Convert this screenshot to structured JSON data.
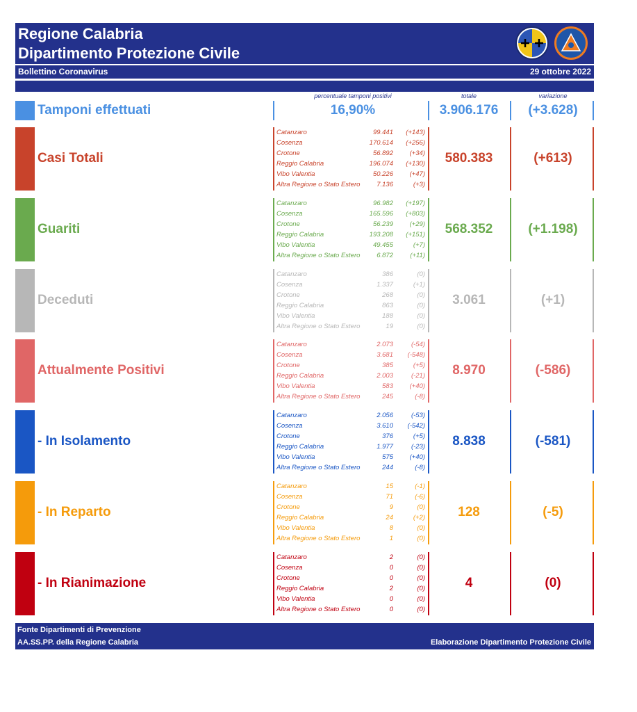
{
  "header": {
    "title_line1": "Regione Calabria",
    "title_line2": "Dipartimento Protezione Civile",
    "subtitle": "Bollettino Coronavirus",
    "date": "29 ottobre 2022"
  },
  "columns": {
    "perc": "percentuale tamponi positivi",
    "totale": "totale",
    "variazione": "variazione"
  },
  "tamponi": {
    "label": "Tamponi effettuati",
    "percentuale": "16,90%",
    "totale": "3.906.176",
    "variazione": "(+3.628)",
    "color": "#4a90e2"
  },
  "sections": [
    {
      "label": "Casi Totali",
      "color": "#c8432b",
      "totale": "580.383",
      "variazione": "(+613)",
      "rows": [
        {
          "name": "Catanzaro",
          "value": "99.441",
          "delta": "(+143)"
        },
        {
          "name": "Cosenza",
          "value": "170.614",
          "delta": "(+256)"
        },
        {
          "name": "Crotone",
          "value": "56.892",
          "delta": "(+34)"
        },
        {
          "name": "Reggio Calabria",
          "value": "196.074",
          "delta": "(+130)"
        },
        {
          "name": "Vibo Valentia",
          "value": "50.226",
          "delta": "(+47)"
        },
        {
          "name": "Altra Regione o Stato Estero",
          "value": "7.136",
          "delta": "(+3)"
        }
      ]
    },
    {
      "label": "Guariti",
      "color": "#6aaa4e",
      "totale": "568.352",
      "variazione": "(+1.198)",
      "rows": [
        {
          "name": "Catanzaro",
          "value": "96.982",
          "delta": "(+197)"
        },
        {
          "name": "Cosenza",
          "value": "165.596",
          "delta": "(+803)"
        },
        {
          "name": "Crotone",
          "value": "56.239",
          "delta": "(+29)"
        },
        {
          "name": "Reggio Calabria",
          "value": "193.208",
          "delta": "(+151)"
        },
        {
          "name": "Vibo Valentia",
          "value": "49.455",
          "delta": "(+7)"
        },
        {
          "name": "Altra Regione o Stato Estero",
          "value": "6.872",
          "delta": "(+11)"
        }
      ]
    },
    {
      "label": "Deceduti",
      "color": "#b7b7b7",
      "totale": "3.061",
      "variazione": "(+1)",
      "rows": [
        {
          "name": "Catanzaro",
          "value": "386",
          "delta": "(0)"
        },
        {
          "name": "Cosenza",
          "value": "1.337",
          "delta": "(+1)"
        },
        {
          "name": "Crotone",
          "value": "268",
          "delta": "(0)"
        },
        {
          "name": "Reggio Calabria",
          "value": "863",
          "delta": "(0)"
        },
        {
          "name": "Vibo Valentia",
          "value": "188",
          "delta": "(0)"
        },
        {
          "name": "Altra Regione o Stato Estero",
          "value": "19",
          "delta": "(0)"
        }
      ]
    },
    {
      "label": "Attualmente Positivi",
      "color": "#e06666",
      "totale": "8.970",
      "variazione": "(-586)",
      "rows": [
        {
          "name": "Catanzaro",
          "value": "2.073",
          "delta": "(-54)"
        },
        {
          "name": "Cosenza",
          "value": "3.681",
          "delta": "(-548)"
        },
        {
          "name": "Crotone",
          "value": "385",
          "delta": "(+5)"
        },
        {
          "name": "Reggio Calabria",
          "value": "2.003",
          "delta": "(-21)"
        },
        {
          "name": "Vibo Valentia",
          "value": "583",
          "delta": "(+40)"
        },
        {
          "name": "Altra Regione o Stato Estero",
          "value": "245",
          "delta": "(-8)"
        }
      ]
    },
    {
      "label": " - In Isolamento",
      "color": "#1a56c4",
      "totale": "8.838",
      "variazione": "(-581)",
      "rows": [
        {
          "name": "Catanzaro",
          "value": "2.056",
          "delta": "(-53)"
        },
        {
          "name": "Cosenza",
          "value": "3.610",
          "delta": "(-542)"
        },
        {
          "name": "Crotone",
          "value": "376",
          "delta": "(+5)"
        },
        {
          "name": "Reggio Calabria",
          "value": "1.977",
          "delta": "(-23)"
        },
        {
          "name": "Vibo Valentia",
          "value": "575",
          "delta": "(+40)"
        },
        {
          "name": "Altra Regione o Stato Estero",
          "value": "244",
          "delta": "(-8)"
        }
      ]
    },
    {
      "label": " - In Reparto",
      "color": "#f59b0b",
      "totale": "128",
      "variazione": "(-5)",
      "rows": [
        {
          "name": "Catanzaro",
          "value": "15",
          "delta": "(-1)"
        },
        {
          "name": "Cosenza",
          "value": "71",
          "delta": "(-6)"
        },
        {
          "name": "Crotone",
          "value": "9",
          "delta": "(0)"
        },
        {
          "name": "Reggio Calabria",
          "value": "24",
          "delta": "(+2)"
        },
        {
          "name": "Vibo Valentia",
          "value": "8",
          "delta": "(0)"
        },
        {
          "name": "Altra Regione o Stato Estero",
          "value": "1",
          "delta": "(0)"
        }
      ]
    },
    {
      "label": " - In Rianimazione",
      "color": "#c00010",
      "totale": "4",
      "variazione": "(0)",
      "rows": [
        {
          "name": "Catanzaro",
          "value": "2",
          "delta": "(0)"
        },
        {
          "name": "Cosenza",
          "value": "0",
          "delta": "(0)"
        },
        {
          "name": "Crotone",
          "value": "0",
          "delta": "(0)"
        },
        {
          "name": "Reggio Calabria",
          "value": "2",
          "delta": "(0)"
        },
        {
          "name": "Vibo Valentia",
          "value": "0",
          "delta": "(0)"
        },
        {
          "name": "Altra Regione o Stato Estero",
          "value": "0",
          "delta": "(0)"
        }
      ]
    }
  ],
  "footer": {
    "line1": "Fonte Dipartimenti di Prevenzione",
    "line2": "AA.SS.PP.  della Regione Calabria",
    "right": "Elaborazione Dipartimento Protezione Civile"
  }
}
